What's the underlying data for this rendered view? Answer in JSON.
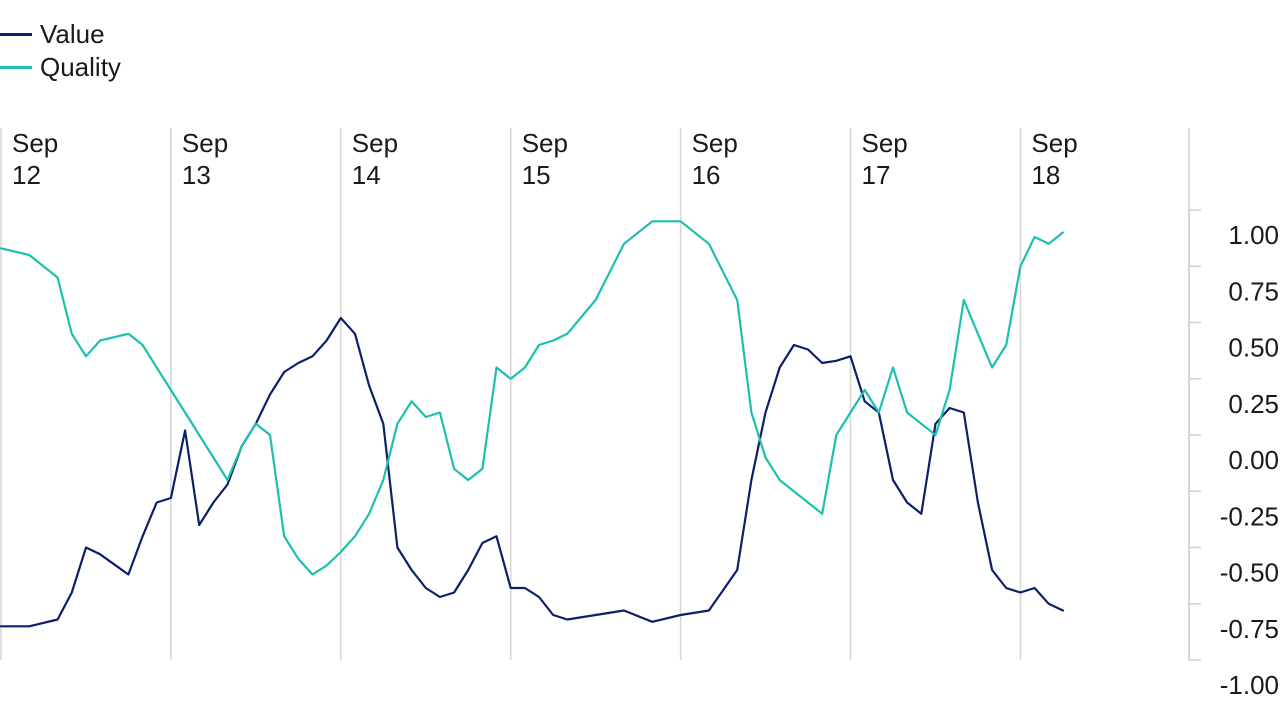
{
  "chart_data": {
    "type": "line",
    "title": "",
    "xlabel": "",
    "ylabel": "",
    "ylim": [
      -1.0,
      1.0
    ],
    "y_ticks": [
      1.0,
      0.75,
      0.5,
      0.25,
      0.0,
      -0.25,
      -0.5,
      -0.75,
      -1.0
    ],
    "y_tick_labels": [
      "1.00",
      "0.75",
      "0.50",
      "0.25",
      "0.00",
      "-0.25",
      "-0.50",
      "-0.75",
      "-1.00"
    ],
    "y_axis_side": "right",
    "x_range": [
      "2012-09",
      "2018-12"
    ],
    "x_ticks": [
      {
        "x": "2012-09",
        "line1": "Sep",
        "line2": "12"
      },
      {
        "x": "2013-09",
        "line1": "Sep",
        "line2": "13"
      },
      {
        "x": "2014-09",
        "line1": "Sep",
        "line2": "14"
      },
      {
        "x": "2015-09",
        "line1": "Sep",
        "line2": "15"
      },
      {
        "x": "2016-09",
        "line1": "Sep",
        "line2": "16"
      },
      {
        "x": "2017-09",
        "line1": "Sep",
        "line2": "17"
      },
      {
        "x": "2018-09",
        "line1": "Sep",
        "line2": "18"
      }
    ],
    "grid": "vertical",
    "legend_position": "top-left",
    "series": [
      {
        "name": "Value",
        "color": "#0b1f6b",
        "x": [
          "2012-09",
          "2012-11",
          "2013-01",
          "2013-02",
          "2013-03",
          "2013-04",
          "2013-06",
          "2013-07",
          "2013-08",
          "2013-09",
          "2013-10",
          "2013-11",
          "2013-12",
          "2014-01",
          "2014-02",
          "2014-03",
          "2014-04",
          "2014-05",
          "2014-06",
          "2014-07",
          "2014-08",
          "2014-09",
          "2014-10",
          "2014-11",
          "2014-12",
          "2015-01",
          "2015-02",
          "2015-03",
          "2015-04",
          "2015-05",
          "2015-06",
          "2015-07",
          "2015-08",
          "2015-09",
          "2015-10",
          "2015-11",
          "2015-12",
          "2016-01",
          "2016-03",
          "2016-05",
          "2016-07",
          "2016-09",
          "2016-11",
          "2017-01",
          "2017-02",
          "2017-03",
          "2017-04",
          "2017-05",
          "2017-06",
          "2017-07",
          "2017-08",
          "2017-09",
          "2017-10",
          "2017-11",
          "2017-12",
          "2018-01",
          "2018-02",
          "2018-03",
          "2018-04",
          "2018-05",
          "2018-06",
          "2018-07",
          "2018-08",
          "2018-09",
          "2018-10",
          "2018-11",
          "2018-12"
        ],
        "y": [
          -0.85,
          -0.85,
          -0.82,
          -0.7,
          -0.5,
          -0.53,
          -0.62,
          -0.45,
          -0.3,
          -0.28,
          0.02,
          -0.4,
          -0.3,
          -0.22,
          -0.05,
          0.05,
          0.18,
          0.28,
          0.32,
          0.35,
          0.42,
          0.52,
          0.45,
          0.22,
          0.05,
          -0.5,
          -0.6,
          -0.68,
          -0.72,
          -0.7,
          -0.6,
          -0.48,
          -0.45,
          -0.68,
          -0.68,
          -0.72,
          -0.8,
          -0.82,
          -0.8,
          -0.78,
          -0.83,
          -0.8,
          -0.78,
          -0.6,
          -0.2,
          0.1,
          0.3,
          0.4,
          0.38,
          0.32,
          0.33,
          0.35,
          0.15,
          0.1,
          -0.2,
          -0.3,
          -0.35,
          0.05,
          0.12,
          0.1,
          -0.3,
          -0.6,
          -0.68,
          -0.7,
          -0.68,
          -0.75,
          -0.78
        ]
      },
      {
        "name": "Quality",
        "color": "#1dbfaf",
        "x": [
          "2012-09",
          "2012-11",
          "2013-01",
          "2013-02",
          "2013-03",
          "2013-04",
          "2013-06",
          "2013-07",
          "2013-08",
          "2013-09",
          "2013-10",
          "2013-11",
          "2013-12",
          "2014-01",
          "2014-02",
          "2014-03",
          "2014-04",
          "2014-05",
          "2014-06",
          "2014-07",
          "2014-08",
          "2014-09",
          "2014-10",
          "2014-11",
          "2014-12",
          "2015-01",
          "2015-02",
          "2015-03",
          "2015-04",
          "2015-05",
          "2015-06",
          "2015-07",
          "2015-08",
          "2015-09",
          "2015-10",
          "2015-11",
          "2015-12",
          "2016-01",
          "2016-03",
          "2016-05",
          "2016-07",
          "2016-09",
          "2016-11",
          "2017-01",
          "2017-02",
          "2017-03",
          "2017-04",
          "2017-05",
          "2017-06",
          "2017-07",
          "2017-08",
          "2017-09",
          "2017-10",
          "2017-11",
          "2017-12",
          "2018-01",
          "2018-02",
          "2018-03",
          "2018-04",
          "2018-05",
          "2018-06",
          "2018-07",
          "2018-08",
          "2018-09",
          "2018-10",
          "2018-11",
          "2018-12"
        ],
        "y": [
          0.83,
          0.8,
          0.7,
          0.45,
          0.35,
          0.42,
          0.45,
          0.4,
          0.3,
          0.2,
          0.1,
          0.0,
          -0.1,
          -0.2,
          -0.05,
          0.05,
          0.0,
          -0.45,
          -0.55,
          -0.62,
          -0.58,
          -0.52,
          -0.45,
          -0.35,
          -0.2,
          0.05,
          0.15,
          0.08,
          0.1,
          -0.15,
          -0.2,
          -0.15,
          0.3,
          0.25,
          0.3,
          0.4,
          0.42,
          0.45,
          0.6,
          0.85,
          0.95,
          0.95,
          0.85,
          0.6,
          0.1,
          -0.1,
          -0.2,
          -0.25,
          -0.3,
          -0.35,
          0.0,
          0.1,
          0.2,
          0.1,
          0.3,
          0.1,
          0.05,
          0.0,
          0.2,
          0.6,
          0.45,
          0.3,
          0.4,
          0.75,
          0.88,
          0.85,
          0.9
        ]
      }
    ]
  }
}
